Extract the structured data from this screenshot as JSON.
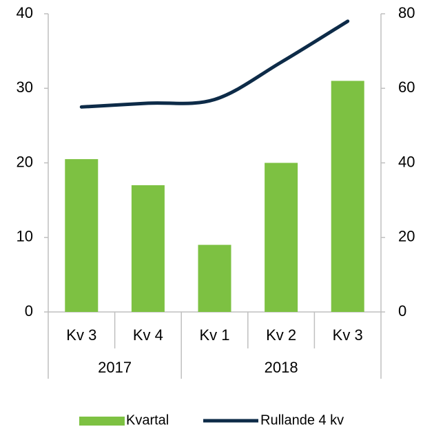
{
  "chart_data": {
    "type": "combo",
    "categories": [
      "Kv 3",
      "Kv 4",
      "Kv 1",
      "Kv 2",
      "Kv 3"
    ],
    "category_groups": [
      "2017",
      "2017",
      "2018",
      "2018",
      "2018"
    ],
    "series": [
      {
        "name": "Kvartal",
        "type": "bar",
        "color": "#7dc142",
        "values": [
          20.5,
          17,
          9,
          20,
          31
        ]
      },
      {
        "name": "Rullande 4 kv",
        "type": "line",
        "color": "#0d2b48",
        "axis": "y2",
        "values": [
          55,
          56,
          57,
          67,
          78
        ]
      }
    ],
    "ylim": [
      0,
      40
    ],
    "yticks": [
      0,
      10,
      20,
      30,
      40
    ],
    "y2lim": [
      0,
      80
    ],
    "y2ticks": [
      0,
      20,
      40,
      60,
      80
    ]
  }
}
